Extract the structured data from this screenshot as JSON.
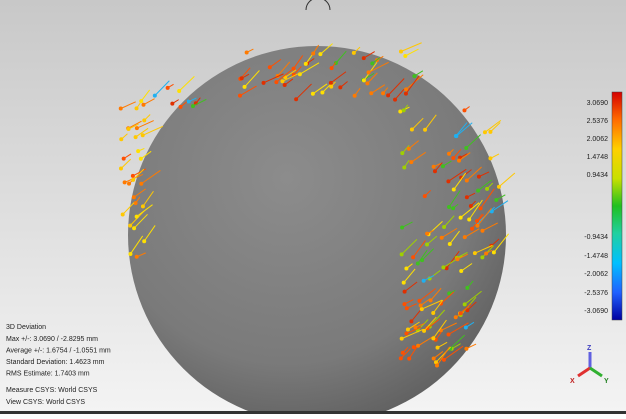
{
  "color_scale": {
    "labels": [
      "3.0690",
      "2.5376",
      "2.0062",
      "1.4748",
      "0.9434",
      "-0.9434",
      "-1.4748",
      "-2.0062",
      "-2.5376",
      "-3.0690"
    ]
  },
  "info": {
    "title": "3D Deviation",
    "lines": [
      "Max +/-: 3.0690 / -2.8295 mm",
      "Average +/-: 1.6754 / -1.0551 mm",
      "Standard Deviation: 1.4623 mm",
      "RMS Estimate: 1.7403 mm"
    ],
    "csys": [
      "Measure CSYS: World CSYS",
      "View CSYS: World CSYS"
    ]
  },
  "triad": {
    "z": "Z",
    "x": "X",
    "y": "Y"
  }
}
